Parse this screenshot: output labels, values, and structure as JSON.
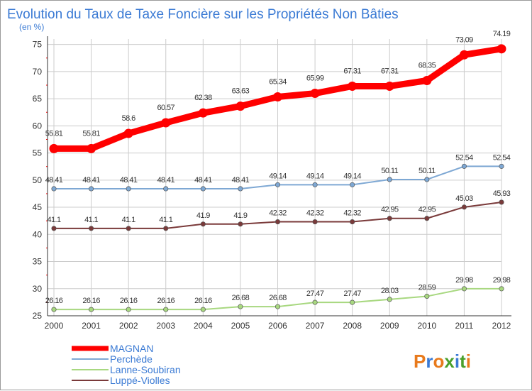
{
  "chart_data": {
    "type": "line",
    "title": "Evolution du Taux de Taxe Foncière sur les Propriétés Non Bâties",
    "ylabel": "(en %)",
    "xlabel": "",
    "ylim": [
      25,
      76
    ],
    "yticks": [
      25,
      30,
      35,
      40,
      45,
      50,
      55,
      60,
      65,
      70,
      75
    ],
    "categories": [
      "2000",
      "2001",
      "2002",
      "2003",
      "2004",
      "2005",
      "2006",
      "2007",
      "2008",
      "2009",
      "2010",
      "2011",
      "2012"
    ],
    "series": [
      {
        "name": "MAGNAN",
        "color": "#ff0000",
        "values": [
          55.81,
          55.81,
          58.6,
          60.57,
          62.38,
          63.63,
          65.34,
          65.99,
          67.31,
          67.31,
          68.35,
          73.09,
          74.19
        ]
      },
      {
        "name": "Perchède",
        "color": "#7ea8d4",
        "values": [
          48.41,
          48.41,
          48.41,
          48.41,
          48.41,
          48.41,
          49.14,
          49.14,
          49.14,
          50.11,
          50.11,
          52.54,
          52.54
        ]
      },
      {
        "name": "Lanne-Soubiran",
        "color": "#a8d880",
        "values": [
          26.16,
          26.16,
          26.16,
          26.16,
          26.16,
          26.68,
          26.68,
          27.47,
          27.47,
          28.03,
          28.59,
          29.98,
          29.98
        ]
      },
      {
        "name": "Luppé-Violles",
        "color": "#7a3a3a",
        "values": [
          41.1,
          41.1,
          41.1,
          41.1,
          41.9,
          41.9,
          42.32,
          42.32,
          42.32,
          42.95,
          42.95,
          45.03,
          45.93
        ]
      }
    ]
  },
  "colors": {
    "title": "#3a7ad4",
    "legend_text": "#3a7ad4",
    "axis": "#333333",
    "grid": "#cccccc"
  },
  "logo": {
    "text": "Proxiti"
  }
}
